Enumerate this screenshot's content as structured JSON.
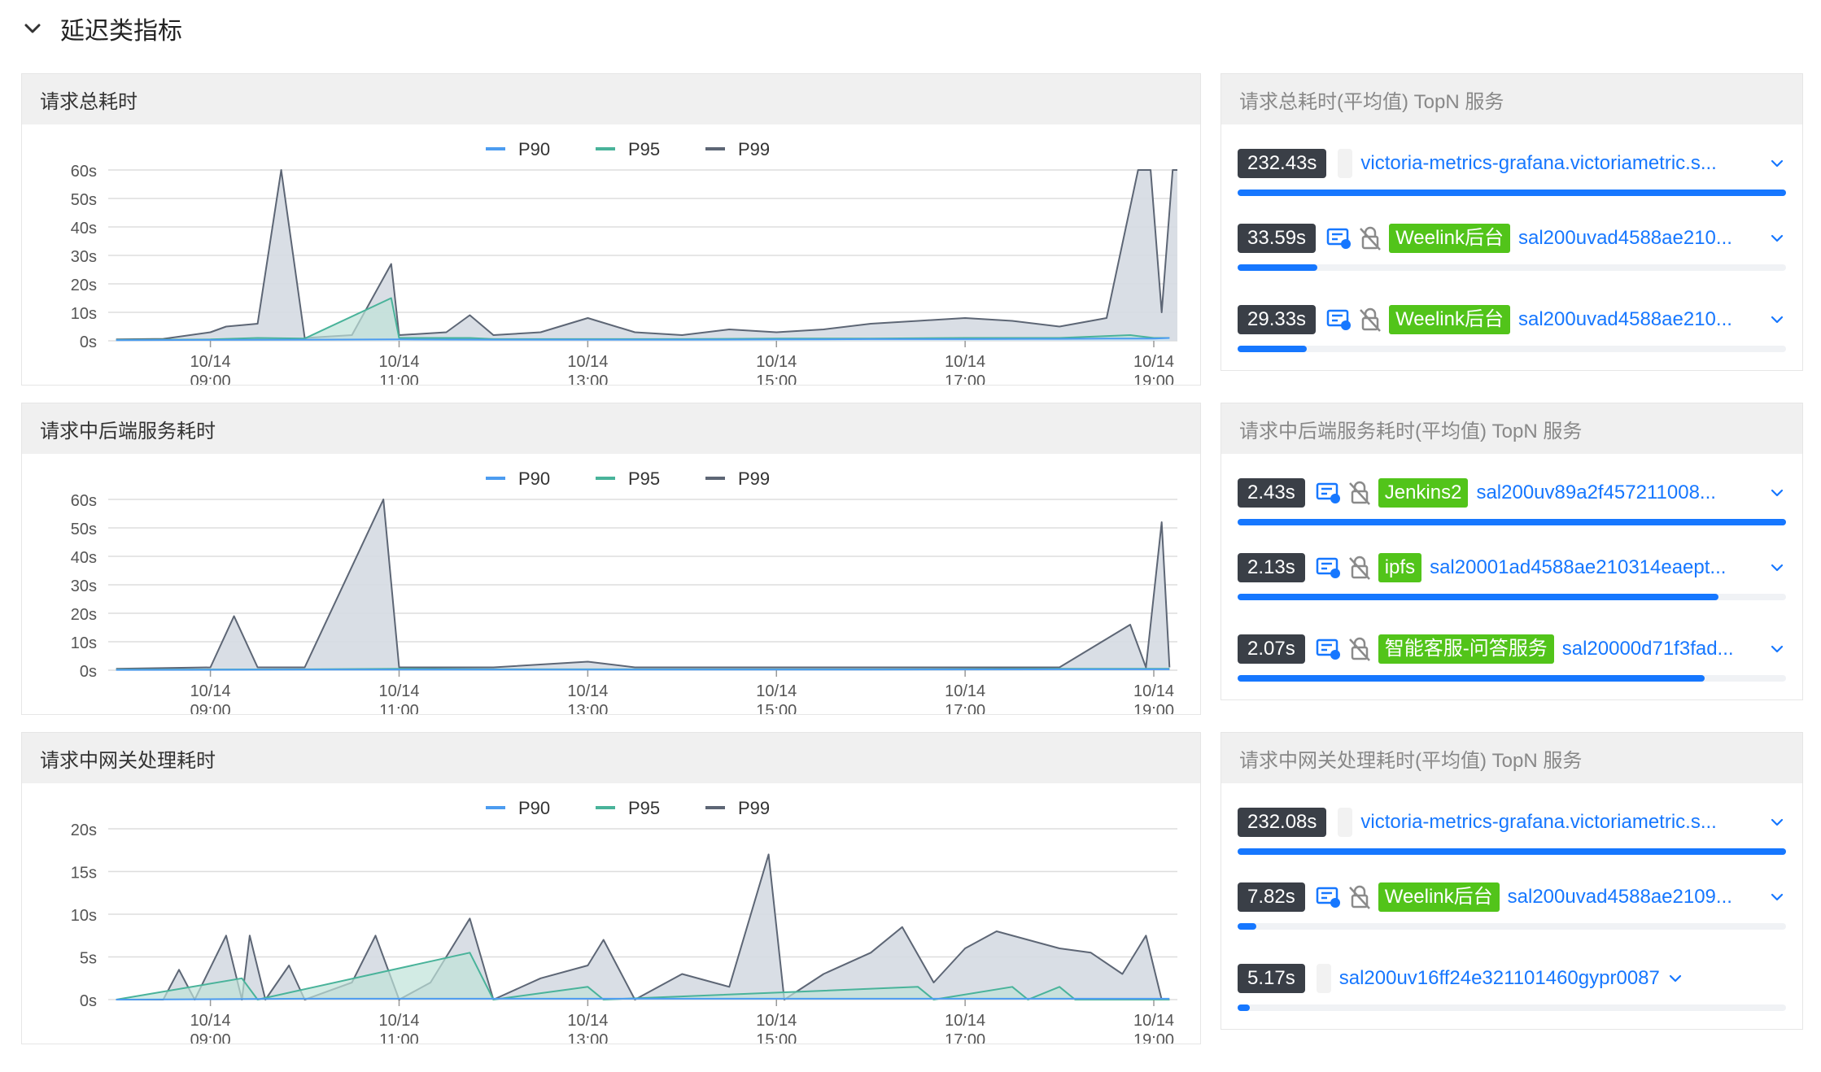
{
  "section": {
    "title": "延迟类指标",
    "icon": "chevron-down-icon"
  },
  "colors": {
    "p90": "#4c9cf0",
    "p95": "#49b39a",
    "p99": "#5d6675",
    "fill": "#d5dae2",
    "grid": "#dddddd",
    "accent": "#1677ff",
    "tag_green": "#52c41a",
    "value_badge": "#3a3f47"
  },
  "legend": [
    "P90",
    "P95",
    "P99"
  ],
  "x_ticks": [
    {
      "date": "10/14",
      "time": "09:00"
    },
    {
      "date": "10/14",
      "time": "11:00"
    },
    {
      "date": "10/14",
      "time": "13:00"
    },
    {
      "date": "10/14",
      "time": "15:00"
    },
    {
      "date": "10/14",
      "time": "17:00"
    },
    {
      "date": "10/14",
      "time": "19:00"
    }
  ],
  "charts": [
    {
      "title": "请求总耗时",
      "y_ticks": [
        "60s",
        "50s",
        "40s",
        "30s",
        "20s",
        "10s",
        "0s"
      ]
    },
    {
      "title": "请求中后端服务耗时",
      "y_ticks": [
        "60s",
        "50s",
        "40s",
        "30s",
        "20s",
        "10s",
        "0s"
      ]
    },
    {
      "title": "请求中网关处理耗时",
      "y_ticks": [
        "20s",
        "15s",
        "10s",
        "5s",
        "0s"
      ]
    }
  ],
  "chart_data": [
    {
      "type": "area",
      "title": "请求总耗时",
      "x_range": [
        "10/14 07:55",
        "10/14 19:15"
      ],
      "x_ticks": [
        "10/14 09:00",
        "10/14 11:00",
        "10/14 13:00",
        "10/14 15:00",
        "10/14 17:00",
        "10/14 19:00"
      ],
      "ylim": [
        0,
        60
      ],
      "y_unit": "s",
      "grid": true,
      "legend": "top-center",
      "series": [
        {
          "name": "P90",
          "color": "#4c9cf0",
          "points": [
            [
              "08:00",
              0.2
            ],
            [
              "09:00",
              0.3
            ],
            [
              "10:00",
              0.4
            ],
            [
              "11:00",
              0.5
            ],
            [
              "12:00",
              0.4
            ],
            [
              "13:00",
              0.4
            ],
            [
              "14:00",
              0.4
            ],
            [
              "15:00",
              0.5
            ],
            [
              "16:00",
              0.6
            ],
            [
              "17:00",
              0.6
            ],
            [
              "18:00",
              0.7
            ],
            [
              "18:30",
              0.8
            ],
            [
              "19:00",
              0.8
            ],
            [
              "19:10",
              1
            ]
          ]
        },
        {
          "name": "P95",
          "color": "#49b39a",
          "points": [
            [
              "08:00",
              0.3
            ],
            [
              "09:00",
              0.5
            ],
            [
              "09:30",
              1
            ],
            [
              "10:00",
              0.8
            ],
            [
              "10:55",
              15
            ],
            [
              "11:00",
              1
            ],
            [
              "11:45",
              1
            ],
            [
              "12:00",
              0.6
            ],
            [
              "13:00",
              0.6
            ],
            [
              "14:00",
              0.6
            ],
            [
              "15:00",
              0.8
            ],
            [
              "16:00",
              0.8
            ],
            [
              "17:00",
              1
            ],
            [
              "18:00",
              1
            ],
            [
              "18:45",
              2
            ],
            [
              "19:00",
              1
            ],
            [
              "19:10",
              1
            ]
          ]
        },
        {
          "name": "P99",
          "color": "#5d6675",
          "points": [
            [
              "08:00",
              0.5
            ],
            [
              "08:30",
              0.7
            ],
            [
              "09:00",
              3
            ],
            [
              "09:10",
              5
            ],
            [
              "09:30",
              6
            ],
            [
              "09:45",
              60
            ],
            [
              "10:00",
              1
            ],
            [
              "10:30",
              2
            ],
            [
              "10:55",
              27
            ],
            [
              "11:00",
              2
            ],
            [
              "11:30",
              3
            ],
            [
              "11:45",
              9
            ],
            [
              "12:00",
              2
            ],
            [
              "12:30",
              3
            ],
            [
              "13:00",
              8
            ],
            [
              "13:30",
              3
            ],
            [
              "14:00",
              2
            ],
            [
              "14:30",
              4
            ],
            [
              "15:00",
              3
            ],
            [
              "15:30",
              4
            ],
            [
              "16:00",
              6
            ],
            [
              "16:30",
              7
            ],
            [
              "17:00",
              8
            ],
            [
              "17:30",
              7
            ],
            [
              "18:00",
              5
            ],
            [
              "18:30",
              8
            ],
            [
              "18:50",
              60
            ],
            [
              "18:58",
              60
            ],
            [
              "19:05",
              10
            ],
            [
              "19:12",
              60
            ],
            [
              "19:15",
              60
            ]
          ]
        }
      ]
    },
    {
      "type": "area",
      "title": "请求中后端服务耗时",
      "x_range": [
        "10/14 07:55",
        "10/14 19:15"
      ],
      "x_ticks": [
        "10/14 09:00",
        "10/14 11:00",
        "10/14 13:00",
        "10/14 15:00",
        "10/14 17:00",
        "10/14 19:00"
      ],
      "ylim": [
        0,
        60
      ],
      "y_unit": "s",
      "grid": true,
      "legend": "top-center",
      "series": [
        {
          "name": "P90",
          "color": "#4c9cf0",
          "points": [
            [
              "08:00",
              0.1
            ],
            [
              "10:00",
              0.2
            ],
            [
              "12:00",
              0.2
            ],
            [
              "14:00",
              0.2
            ],
            [
              "16:00",
              0.2
            ],
            [
              "18:00",
              0.3
            ],
            [
              "19:10",
              0.3
            ]
          ]
        },
        {
          "name": "P95",
          "color": "#49b39a",
          "points": [
            [
              "08:00",
              0.2
            ],
            [
              "10:00",
              0.3
            ],
            [
              "11:00",
              0.5
            ],
            [
              "12:00",
              0.3
            ],
            [
              "14:00",
              0.3
            ],
            [
              "16:00",
              0.3
            ],
            [
              "18:00",
              0.5
            ],
            [
              "19:10",
              0.5
            ]
          ]
        },
        {
          "name": "P99",
          "color": "#5d6675",
          "points": [
            [
              "08:00",
              0.5
            ],
            [
              "09:00",
              1
            ],
            [
              "09:15",
              19
            ],
            [
              "09:30",
              1
            ],
            [
              "10:00",
              1
            ],
            [
              "10:50",
              60
            ],
            [
              "11:00",
              1
            ],
            [
              "12:00",
              1
            ],
            [
              "13:00",
              3
            ],
            [
              "13:30",
              1
            ],
            [
              "14:00",
              1
            ],
            [
              "15:00",
              1
            ],
            [
              "16:00",
              1
            ],
            [
              "17:00",
              1
            ],
            [
              "18:00",
              1
            ],
            [
              "18:45",
              16
            ],
            [
              "18:55",
              1
            ],
            [
              "19:05",
              52
            ],
            [
              "19:10",
              1
            ]
          ]
        }
      ]
    },
    {
      "type": "area",
      "title": "请求中网关处理耗时",
      "x_range": [
        "10/14 07:55",
        "10/14 19:15"
      ],
      "x_ticks": [
        "10/14 09:00",
        "10/14 11:00",
        "10/14 13:00",
        "10/14 15:00",
        "10/14 17:00",
        "10/14 19:00"
      ],
      "ylim": [
        0,
        20
      ],
      "y_unit": "s",
      "grid": true,
      "legend": "top-center",
      "series": [
        {
          "name": "P90",
          "color": "#4c9cf0",
          "points": [
            [
              "08:00",
              0
            ],
            [
              "10:00",
              0.1
            ],
            [
              "12:00",
              0.1
            ],
            [
              "14:00",
              0.1
            ],
            [
              "16:00",
              0.1
            ],
            [
              "18:00",
              0.1
            ],
            [
              "19:10",
              0.1
            ]
          ]
        },
        {
          "name": "P95",
          "color": "#49b39a",
          "points": [
            [
              "08:00",
              0
            ],
            [
              "09:20",
              2.5
            ],
            [
              "09:30",
              0
            ],
            [
              "11:45",
              5.5
            ],
            [
              "12:00",
              0
            ],
            [
              "13:00",
              1.5
            ],
            [
              "13:10",
              0
            ],
            [
              "16:30",
              1.5
            ],
            [
              "16:40",
              0
            ],
            [
              "17:30",
              1.5
            ],
            [
              "17:40",
              0
            ],
            [
              "18:00",
              1.5
            ],
            [
              "18:10",
              0
            ],
            [
              "19:10",
              0
            ]
          ]
        },
        {
          "name": "P99",
          "color": "#5d6675",
          "points": [
            [
              "08:00",
              0
            ],
            [
              "08:30",
              0
            ],
            [
              "08:40",
              3.5
            ],
            [
              "08:50",
              0
            ],
            [
              "09:10",
              7.5
            ],
            [
              "09:20",
              0
            ],
            [
              "09:25",
              7.5
            ],
            [
              "09:35",
              0
            ],
            [
              "09:50",
              4
            ],
            [
              "10:00",
              0
            ],
            [
              "10:30",
              2
            ],
            [
              "10:45",
              7.5
            ],
            [
              "11:00",
              0
            ],
            [
              "11:20",
              2
            ],
            [
              "11:45",
              9.5
            ],
            [
              "12:00",
              0
            ],
            [
              "12:30",
              2.5
            ],
            [
              "13:00",
              4
            ],
            [
              "13:10",
              7
            ],
            [
              "13:30",
              0
            ],
            [
              "14:00",
              3
            ],
            [
              "14:30",
              1.5
            ],
            [
              "14:55",
              17
            ],
            [
              "15:05",
              0
            ],
            [
              "15:30",
              3
            ],
            [
              "16:00",
              5.5
            ],
            [
              "16:20",
              8.5
            ],
            [
              "16:40",
              2
            ],
            [
              "17:00",
              6
            ],
            [
              "17:20",
              8
            ],
            [
              "17:40",
              7
            ],
            [
              "18:00",
              6
            ],
            [
              "18:20",
              5.5
            ],
            [
              "18:40",
              3
            ],
            [
              "18:55",
              7.5
            ],
            [
              "19:05",
              0
            ],
            [
              "19:10",
              0
            ]
          ]
        }
      ]
    }
  ],
  "topn_panels": [
    {
      "title": "请求总耗时(平均值) TopN 服务",
      "rows": [
        {
          "value": "232.43s",
          "has_icons": false,
          "tag": "",
          "name": "victoria-metrics-grafana.victoriametric.s...",
          "percent": 100
        },
        {
          "value": "33.59s",
          "has_icons": true,
          "tag": "Weelink后台",
          "name": "sal200uvad4588ae210...",
          "percent": 14.5
        },
        {
          "value": "29.33s",
          "has_icons": true,
          "tag": "Weelink后台",
          "name": "sal200uvad4588ae210...",
          "percent": 12.6
        }
      ]
    },
    {
      "title": "请求中后端服务耗时(平均值) TopN 服务",
      "rows": [
        {
          "value": "2.43s",
          "has_icons": true,
          "tag": "Jenkins2",
          "name": "sal200uv89a2f457211008...",
          "percent": 100
        },
        {
          "value": "2.13s",
          "has_icons": true,
          "tag": "ipfs",
          "name": "sal20001ad4588ae210314eaept...",
          "percent": 87.7
        },
        {
          "value": "2.07s",
          "has_icons": true,
          "tag": "智能客服-问答服务",
          "name": "sal20000d71f3fad...",
          "percent": 85.2
        }
      ]
    },
    {
      "title": "请求中网关处理耗时(平均值) TopN 服务",
      "rows": [
        {
          "value": "232.08s",
          "has_icons": false,
          "tag": "",
          "name": "victoria-metrics-grafana.victoriametric.s...",
          "percent": 100
        },
        {
          "value": "7.82s",
          "has_icons": true,
          "tag": "Weelink后台",
          "name": "sal200uvad4588ae2109...",
          "percent": 3.4
        },
        {
          "value": "5.17s",
          "has_icons": false,
          "tag": "",
          "name": "sal200uv16ff24e321101460gypr0087",
          "percent": 2.2
        }
      ]
    }
  ]
}
